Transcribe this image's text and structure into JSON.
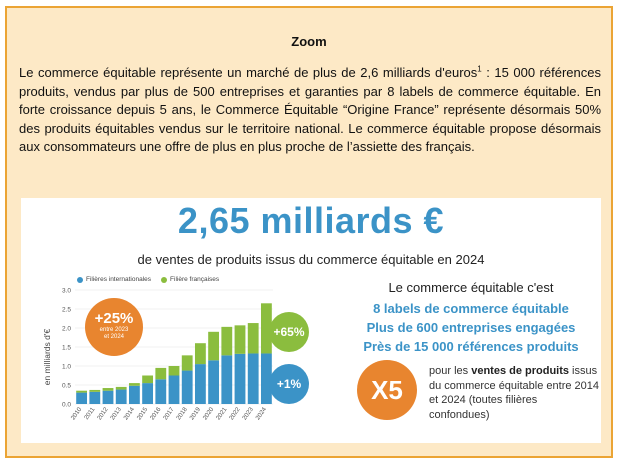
{
  "zoom": {
    "title": "Zoom",
    "text_before_note": "Le commerce équitable représente un marché de plus de 2,6 milliards d'euros",
    "footnote_mark": "1",
    "text_after_note": " : 15 000 références produits, vendus par plus de 500 entreprises et garanties par 8 labels de commerce équitable. En forte croissance depuis 5 ans, le  Commerce Équitable “Origine France” représente désormais 50% des produits équitables vendus sur le territoire national. Le commerce équitable propose désormais aux consommateurs une offre de plus en plus proche de l’assiette des français."
  },
  "infographic": {
    "headline": "2,65 milliards €",
    "subtitle": "de ventes de produits issus du commerce équitable en 2024",
    "badge_25": {
      "value": "+25%",
      "note_line1": "entre 2023",
      "note_line2": "et 2024"
    },
    "badge_65": "+65%",
    "badge_1": "+1%",
    "facts_intro": "Le commerce équitable c'est",
    "facts": [
      "8 labels de commerce équitable",
      "Plus de 600 entreprises engagées",
      "Près de 15 000 références produits"
    ],
    "x5": {
      "value": "X5",
      "text_prefix": "pour les ",
      "text_bold": "ventes de produits",
      "text_suffix": " issus du commerce équitable entre 2014 et 2024 (toutes filières confondues)"
    }
  },
  "chart_data": {
    "type": "bar",
    "stacked": true,
    "ylabel": "en milliards d'€",
    "ylim": [
      0,
      3.0
    ],
    "yticks": [
      "0.0",
      "0.5",
      "1.0",
      "1.5",
      "2.0",
      "2.5",
      "3.0"
    ],
    "categories": [
      "2010",
      "2011",
      "2012",
      "2013",
      "2014",
      "2015",
      "2016",
      "2017",
      "2018",
      "2019",
      "2020",
      "2021",
      "2022",
      "2023",
      "2024"
    ],
    "series": [
      {
        "name": "Filières internationales",
        "color": "#3b93c7",
        "values": [
          0.3,
          0.32,
          0.35,
          0.38,
          0.48,
          0.55,
          0.65,
          0.75,
          0.88,
          1.05,
          1.15,
          1.28,
          1.32,
          1.33,
          1.33
        ]
      },
      {
        "name": "Filière françaises",
        "color": "#8bbd3e",
        "values": [
          0.05,
          0.05,
          0.07,
          0.07,
          0.07,
          0.2,
          0.3,
          0.25,
          0.4,
          0.55,
          0.75,
          0.75,
          0.75,
          0.8,
          1.32
        ]
      }
    ]
  }
}
